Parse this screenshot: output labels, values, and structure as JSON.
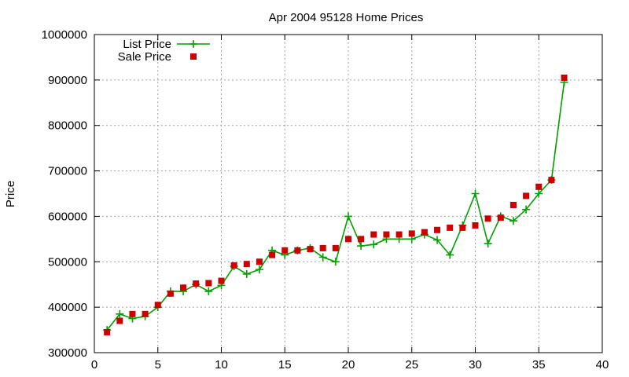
{
  "chart_data": {
    "type": "line",
    "title": "Apr 2004 95128 Home Prices",
    "xlabel": "",
    "ylabel": "Price",
    "xlim": [
      0,
      40
    ],
    "ylim": [
      300000,
      1000000
    ],
    "xticks": [
      "0",
      "5",
      "10",
      "15",
      "20",
      "25",
      "30",
      "35",
      "40"
    ],
    "yticks": [
      "300000",
      "400000",
      "500000",
      "600000",
      "700000",
      "800000",
      "900000",
      "1000000"
    ],
    "grid": true,
    "legend": "top-left",
    "series": [
      {
        "name": "List Price",
        "style": "line+cross",
        "color": "#00a000",
        "x": [
          1,
          2,
          3,
          4,
          5,
          6,
          7,
          8,
          9,
          10,
          11,
          12,
          13,
          14,
          15,
          16,
          17,
          18,
          19,
          20,
          21,
          22,
          23,
          24,
          25,
          26,
          27,
          28,
          29,
          30,
          31,
          32,
          33,
          34,
          35,
          36,
          37
        ],
        "values": [
          350000,
          385000,
          375000,
          380000,
          400000,
          435000,
          435000,
          450000,
          435000,
          448000,
          490000,
          473000,
          483000,
          525000,
          515000,
          525000,
          530000,
          510000,
          500000,
          600000,
          535000,
          538000,
          550000,
          550000,
          550000,
          560000,
          548000,
          515000,
          580000,
          650000,
          540000,
          600000,
          590000,
          615000,
          650000,
          680000,
          895000
        ]
      },
      {
        "name": "Sale Price",
        "style": "square",
        "color": "#cc0000",
        "x": [
          1,
          2,
          3,
          4,
          5,
          6,
          7,
          8,
          9,
          10,
          11,
          12,
          13,
          14,
          15,
          16,
          17,
          18,
          19,
          20,
          21,
          22,
          23,
          24,
          25,
          26,
          27,
          28,
          29,
          30,
          31,
          32,
          33,
          34,
          35,
          36,
          37
        ],
        "values": [
          345000,
          370000,
          385000,
          385000,
          405000,
          430000,
          443000,
          452000,
          453000,
          458000,
          492000,
          495000,
          500000,
          515000,
          525000,
          525000,
          528000,
          530000,
          530000,
          550000,
          550000,
          560000,
          560000,
          560000,
          562000,
          565000,
          570000,
          575000,
          575000,
          580000,
          595000,
          597000,
          625000,
          645000,
          665000,
          680000,
          905000
        ]
      }
    ]
  }
}
